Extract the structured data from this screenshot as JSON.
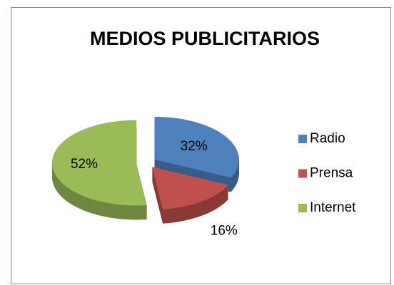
{
  "chart_data": {
    "type": "pie",
    "title": "MEDIOS PUBLICITARIOS",
    "categories": [
      "Radio",
      "Prensa",
      "Internet"
    ],
    "values": [
      32,
      16,
      52
    ],
    "value_labels": [
      "32%",
      "16%",
      "52%"
    ],
    "colors": [
      "#4f81bd",
      "#c0504d",
      "#9bbb59"
    ],
    "legend": "right"
  }
}
